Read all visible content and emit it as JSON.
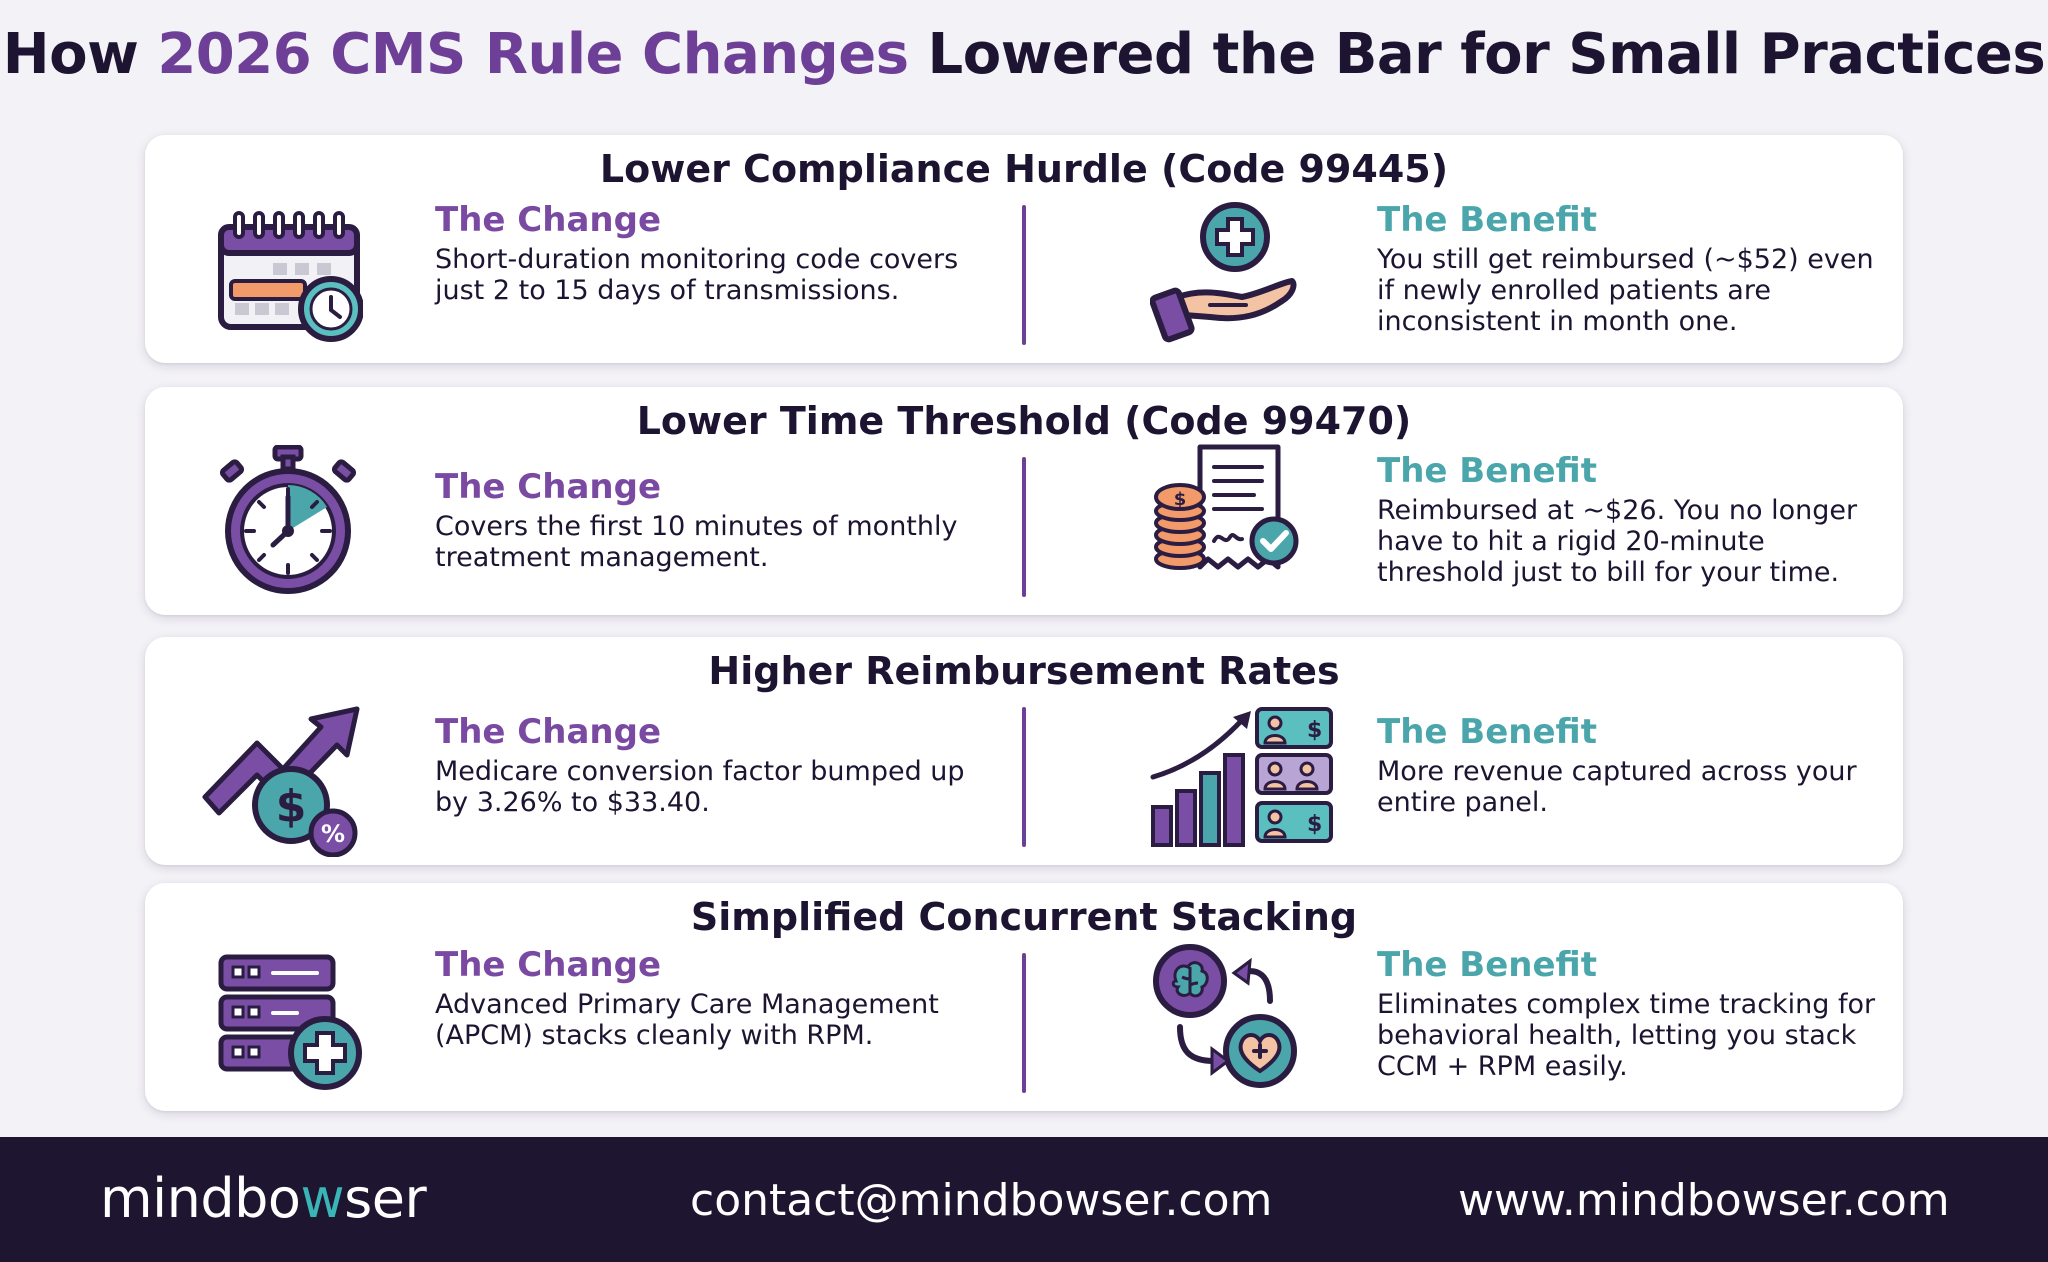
{
  "title": {
    "prefix": "How",
    "highlight": "2026 CMS Rule Changes",
    "suffix": "Lowered the Bar for Small Practices"
  },
  "colors": {
    "purple": "#6e3f96",
    "teal": "#39b5b8",
    "dark": "#1c1430",
    "footer_bg": "#1e1530"
  },
  "sections": [
    {
      "title": "Lower Compliance Hurdle (Code 99445)",
      "left_icon": "calendar-clock-icon",
      "change_heading": "The Change",
      "change_text": "Short-duration monitoring code covers just 2 to 15 days of transmissions.",
      "right_icon": "hand-medical-plus-icon",
      "benefit_heading": "The Benefit",
      "benefit_text": "You still get reimbursed (~$52) even if newly enrolled patients are inconsistent in month one."
    },
    {
      "title": "Lower Time Threshold (Code 99470)",
      "left_icon": "stopwatch-icon",
      "change_heading": "The Change",
      "change_text": "Covers the first 10 minutes of monthly treatment management.",
      "right_icon": "receipt-coins-icon",
      "benefit_heading": "The Benefit",
      "benefit_text": "Reimbursed at ~$26. You no longer have to hit a rigid 20-minute threshold just to bill for your time."
    },
    {
      "title": "Higher Reimbursement Rates",
      "left_icon": "growth-arrow-dollar-icon",
      "change_heading": "The Change",
      "change_text": "Medicare conversion factor bumped up by 3.26% to $33.40.",
      "right_icon": "bar-chart-patients-icon",
      "benefit_heading": "The Benefit",
      "benefit_text": "More revenue captured across your entire panel."
    },
    {
      "title": "Simplified Concurrent Stacking",
      "left_icon": "server-stack-plus-icon",
      "change_heading": "The Change",
      "change_text": "Advanced Primary Care Management (APCM) stacks cleanly with RPM.",
      "right_icon": "brain-heart-cycle-icon",
      "benefit_heading": "The Benefit",
      "benefit_text": "Eliminates complex time tracking for behavioral health, letting you stack CCM + RPM easily."
    }
  ],
  "footer": {
    "brand_start": "mindbo",
    "brand_w": "w",
    "brand_end": "ser",
    "email": "contact@mindbowser.com",
    "website": "www.mindbowser.com"
  }
}
